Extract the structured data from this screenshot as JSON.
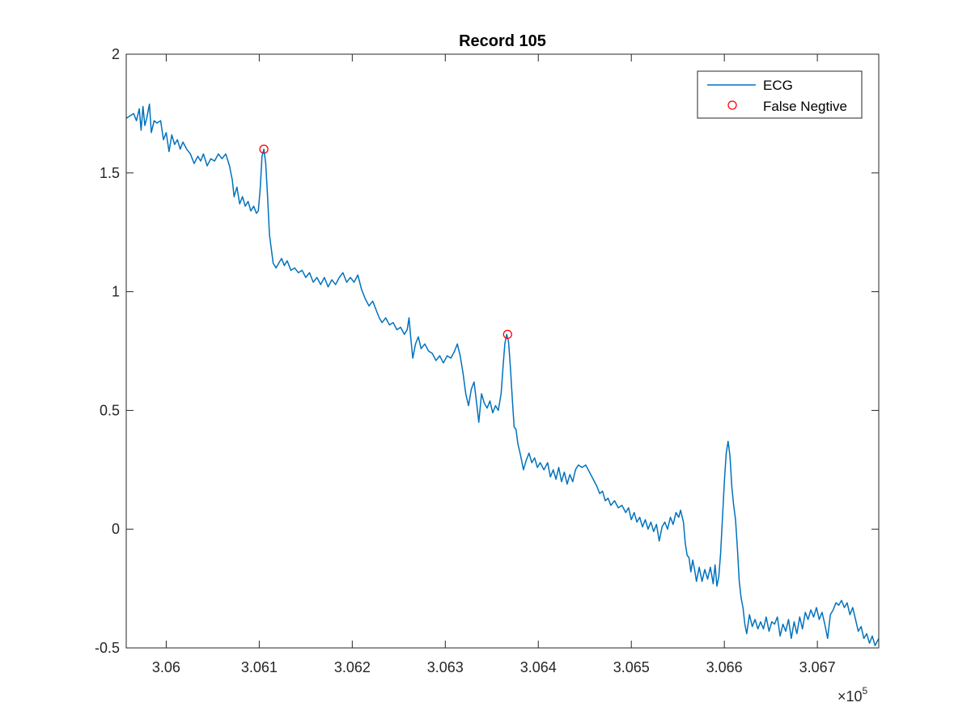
{
  "chart_data": {
    "type": "line",
    "title": "Record 105",
    "xlabel": "",
    "ylabel": "",
    "x_exponent_label": "×10",
    "x_exponent_power": "5",
    "xlim": [
      305957,
      306766
    ],
    "ylim": [
      -0.5,
      2
    ],
    "x_ticks": [
      306000,
      306100,
      306200,
      306300,
      306400,
      306500,
      306600,
      306700
    ],
    "x_tick_labels": [
      "3.06",
      "3.061",
      "3.062",
      "3.063",
      "3.064",
      "3.065",
      "3.066",
      "3.067"
    ],
    "y_ticks": [
      -0.5,
      0,
      0.5,
      1,
      1.5,
      2
    ],
    "y_tick_labels": [
      "-0.5",
      "0",
      "0.5",
      "1",
      "1.5",
      "2"
    ],
    "grid": false,
    "legend": {
      "position": "top-right",
      "entries": [
        {
          "label": "ECG",
          "marker": "line",
          "color": "#0072BD"
        },
        {
          "label": "False Negtive",
          "marker": "circle",
          "color": "#FF0000"
        }
      ]
    },
    "series": [
      {
        "name": "ECG",
        "color": "#0072BD",
        "points": [
          [
            305957,
            1.73
          ],
          [
            305961,
            1.74
          ],
          [
            305965,
            1.75
          ],
          [
            305968,
            1.72
          ],
          [
            305971,
            1.77
          ],
          [
            305973,
            1.68
          ],
          [
            305975,
            1.78
          ],
          [
            305977,
            1.7
          ],
          [
            305979,
            1.73
          ],
          [
            305982,
            1.79
          ],
          [
            305984,
            1.67
          ],
          [
            305987,
            1.72
          ],
          [
            305990,
            1.71
          ],
          [
            305994,
            1.72
          ],
          [
            305997,
            1.64
          ],
          [
            306000,
            1.67
          ],
          [
            306003,
            1.59
          ],
          [
            306006,
            1.66
          ],
          [
            306009,
            1.62
          ],
          [
            306012,
            1.64
          ],
          [
            306015,
            1.6
          ],
          [
            306018,
            1.63
          ],
          [
            306022,
            1.6
          ],
          [
            306026,
            1.58
          ],
          [
            306030,
            1.54
          ],
          [
            306034,
            1.57
          ],
          [
            306037,
            1.55
          ],
          [
            306040,
            1.58
          ],
          [
            306044,
            1.53
          ],
          [
            306048,
            1.56
          ],
          [
            306052,
            1.55
          ],
          [
            306056,
            1.58
          ],
          [
            306060,
            1.56
          ],
          [
            306064,
            1.58
          ],
          [
            306068,
            1.53
          ],
          [
            306071,
            1.47
          ],
          [
            306073,
            1.4
          ],
          [
            306076,
            1.44
          ],
          [
            306079,
            1.37
          ],
          [
            306082,
            1.4
          ],
          [
            306085,
            1.36
          ],
          [
            306088,
            1.38
          ],
          [
            306091,
            1.34
          ],
          [
            306094,
            1.36
          ],
          [
            306097,
            1.33
          ],
          [
            306099,
            1.34
          ],
          [
            306101,
            1.43
          ],
          [
            306103,
            1.57
          ],
          [
            306105,
            1.6
          ],
          [
            306107,
            1.54
          ],
          [
            306109,
            1.4
          ],
          [
            306111,
            1.24
          ],
          [
            306113,
            1.18
          ],
          [
            306115,
            1.12
          ],
          [
            306118,
            1.1
          ],
          [
            306121,
            1.12
          ],
          [
            306124,
            1.14
          ],
          [
            306127,
            1.11
          ],
          [
            306130,
            1.13
          ],
          [
            306134,
            1.09
          ],
          [
            306138,
            1.1
          ],
          [
            306142,
            1.08
          ],
          [
            306146,
            1.09
          ],
          [
            306150,
            1.06
          ],
          [
            306154,
            1.08
          ],
          [
            306158,
            1.04
          ],
          [
            306162,
            1.06
          ],
          [
            306166,
            1.03
          ],
          [
            306170,
            1.06
          ],
          [
            306174,
            1.02
          ],
          [
            306178,
            1.05
          ],
          [
            306182,
            1.03
          ],
          [
            306186,
            1.06
          ],
          [
            306190,
            1.08
          ],
          [
            306194,
            1.04
          ],
          [
            306198,
            1.06
          ],
          [
            306202,
            1.04
          ],
          [
            306206,
            1.07
          ],
          [
            306210,
            1.01
          ],
          [
            306214,
            0.97
          ],
          [
            306218,
            0.94
          ],
          [
            306222,
            0.96
          ],
          [
            306226,
            0.92
          ],
          [
            306229,
            0.89
          ],
          [
            306232,
            0.87
          ],
          [
            306236,
            0.89
          ],
          [
            306240,
            0.86
          ],
          [
            306244,
            0.87
          ],
          [
            306248,
            0.84
          ],
          [
            306252,
            0.85
          ],
          [
            306256,
            0.82
          ],
          [
            306259,
            0.84
          ],
          [
            306261,
            0.89
          ],
          [
            306263,
            0.8
          ],
          [
            306265,
            0.72
          ],
          [
            306268,
            0.78
          ],
          [
            306271,
            0.81
          ],
          [
            306274,
            0.76
          ],
          [
            306278,
            0.78
          ],
          [
            306282,
            0.75
          ],
          [
            306286,
            0.74
          ],
          [
            306290,
            0.71
          ],
          [
            306294,
            0.73
          ],
          [
            306298,
            0.7
          ],
          [
            306302,
            0.73
          ],
          [
            306306,
            0.72
          ],
          [
            306310,
            0.75
          ],
          [
            306313,
            0.78
          ],
          [
            306316,
            0.73
          ],
          [
            306319,
            0.66
          ],
          [
            306322,
            0.57
          ],
          [
            306325,
            0.52
          ],
          [
            306328,
            0.59
          ],
          [
            306331,
            0.62
          ],
          [
            306334,
            0.52
          ],
          [
            306336,
            0.45
          ],
          [
            306339,
            0.57
          ],
          [
            306342,
            0.53
          ],
          [
            306345,
            0.51
          ],
          [
            306348,
            0.54
          ],
          [
            306351,
            0.49
          ],
          [
            306354,
            0.52
          ],
          [
            306357,
            0.5
          ],
          [
            306360,
            0.57
          ],
          [
            306362,
            0.68
          ],
          [
            306364,
            0.78
          ],
          [
            306366,
            0.82
          ],
          [
            306368,
            0.79
          ],
          [
            306370,
            0.68
          ],
          [
            306372,
            0.55
          ],
          [
            306374,
            0.43
          ],
          [
            306376,
            0.42
          ],
          [
            306378,
            0.36
          ],
          [
            306381,
            0.31
          ],
          [
            306384,
            0.25
          ],
          [
            306387,
            0.29
          ],
          [
            306390,
            0.32
          ],
          [
            306393,
            0.28
          ],
          [
            306396,
            0.3
          ],
          [
            306399,
            0.26
          ],
          [
            306402,
            0.28
          ],
          [
            306406,
            0.25
          ],
          [
            306410,
            0.28
          ],
          [
            306413,
            0.22
          ],
          [
            306416,
            0.25
          ],
          [
            306419,
            0.21
          ],
          [
            306422,
            0.26
          ],
          [
            306425,
            0.2
          ],
          [
            306428,
            0.24
          ],
          [
            306431,
            0.19
          ],
          [
            306434,
            0.23
          ],
          [
            306437,
            0.2
          ],
          [
            306440,
            0.25
          ],
          [
            306443,
            0.27
          ],
          [
            306447,
            0.26
          ],
          [
            306451,
            0.27
          ],
          [
            306455,
            0.24
          ],
          [
            306459,
            0.21
          ],
          [
            306463,
            0.18
          ],
          [
            306466,
            0.15
          ],
          [
            306469,
            0.16
          ],
          [
            306472,
            0.12
          ],
          [
            306475,
            0.13
          ],
          [
            306478,
            0.1
          ],
          [
            306482,
            0.12
          ],
          [
            306486,
            0.09
          ],
          [
            306490,
            0.1
          ],
          [
            306494,
            0.07
          ],
          [
            306497,
            0.09
          ],
          [
            306500,
            0.04
          ],
          [
            306503,
            0.07
          ],
          [
            306506,
            0.03
          ],
          [
            306509,
            0.05
          ],
          [
            306512,
            0.01
          ],
          [
            306515,
            0.04
          ],
          [
            306518,
            0.0
          ],
          [
            306521,
            0.03
          ],
          [
            306524,
            -0.01
          ],
          [
            306527,
            0.02
          ],
          [
            306530,
            -0.05
          ],
          [
            306533,
            0.01
          ],
          [
            306536,
            0.03
          ],
          [
            306539,
            0.0
          ],
          [
            306542,
            0.05
          ],
          [
            306545,
            0.02
          ],
          [
            306548,
            0.07
          ],
          [
            306551,
            0.05
          ],
          [
            306553,
            0.08
          ],
          [
            306556,
            0.03
          ],
          [
            306558,
            -0.06
          ],
          [
            306560,
            -0.11
          ],
          [
            306562,
            -0.12
          ],
          [
            306564,
            -0.18
          ],
          [
            306566,
            -0.13
          ],
          [
            306568,
            -0.17
          ],
          [
            306570,
            -0.22
          ],
          [
            306573,
            -0.16
          ],
          [
            306576,
            -0.22
          ],
          [
            306579,
            -0.17
          ],
          [
            306582,
            -0.21
          ],
          [
            306585,
            -0.16
          ],
          [
            306588,
            -0.23
          ],
          [
            306590,
            -0.15
          ],
          [
            306592,
            -0.24
          ],
          [
            306594,
            -0.2
          ],
          [
            306596,
            -0.1
          ],
          [
            306598,
            0.05
          ],
          [
            306600,
            0.2
          ],
          [
            306602,
            0.32
          ],
          [
            306604,
            0.37
          ],
          [
            306606,
            0.31
          ],
          [
            306608,
            0.18
          ],
          [
            306610,
            0.1
          ],
          [
            306612,
            0.04
          ],
          [
            306614,
            -0.08
          ],
          [
            306616,
            -0.22
          ],
          [
            306618,
            -0.29
          ],
          [
            306620,
            -0.33
          ],
          [
            306622,
            -0.4
          ],
          [
            306624,
            -0.44
          ],
          [
            306627,
            -0.36
          ],
          [
            306630,
            -0.41
          ],
          [
            306633,
            -0.38
          ],
          [
            306636,
            -0.42
          ],
          [
            306639,
            -0.39
          ],
          [
            306642,
            -0.42
          ],
          [
            306645,
            -0.37
          ],
          [
            306648,
            -0.43
          ],
          [
            306651,
            -0.39
          ],
          [
            306654,
            -0.4
          ],
          [
            306657,
            -0.37
          ],
          [
            306660,
            -0.45
          ],
          [
            306663,
            -0.4
          ],
          [
            306666,
            -0.43
          ],
          [
            306669,
            -0.38
          ],
          [
            306672,
            -0.46
          ],
          [
            306675,
            -0.39
          ],
          [
            306678,
            -0.44
          ],
          [
            306681,
            -0.37
          ],
          [
            306684,
            -0.42
          ],
          [
            306687,
            -0.35
          ],
          [
            306690,
            -0.38
          ],
          [
            306693,
            -0.34
          ],
          [
            306696,
            -0.37
          ],
          [
            306699,
            -0.33
          ],
          [
            306702,
            -0.38
          ],
          [
            306705,
            -0.35
          ],
          [
            306708,
            -0.4
          ],
          [
            306711,
            -0.46
          ],
          [
            306714,
            -0.36
          ],
          [
            306717,
            -0.34
          ],
          [
            306720,
            -0.31
          ],
          [
            306723,
            -0.32
          ],
          [
            306726,
            -0.3
          ],
          [
            306729,
            -0.33
          ],
          [
            306732,
            -0.31
          ],
          [
            306735,
            -0.36
          ],
          [
            306738,
            -0.33
          ],
          [
            306741,
            -0.38
          ],
          [
            306744,
            -0.43
          ],
          [
            306747,
            -0.41
          ],
          [
            306750,
            -0.46
          ],
          [
            306753,
            -0.44
          ],
          [
            306756,
            -0.48
          ],
          [
            306759,
            -0.45
          ],
          [
            306762,
            -0.49
          ],
          [
            306766,
            -0.46
          ]
        ]
      },
      {
        "name": "False Negtive",
        "color": "#FF0000",
        "marker": "circle",
        "points": [
          [
            306105,
            1.6
          ],
          [
            306367,
            0.82
          ]
        ]
      }
    ]
  }
}
